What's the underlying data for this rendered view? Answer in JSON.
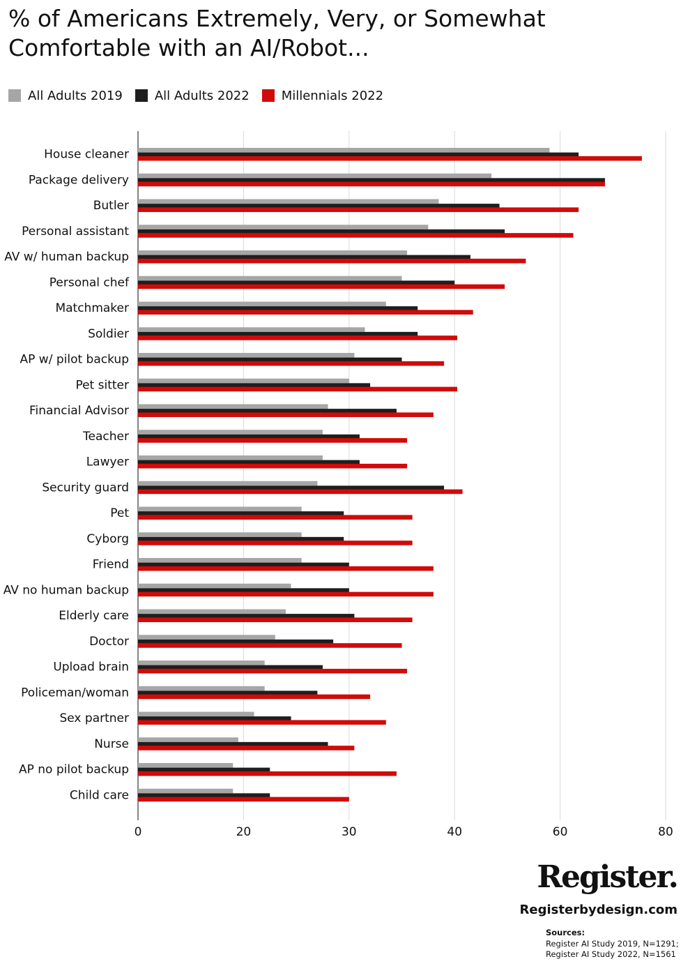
{
  "title": "% of Americans Extremely, Very, or Somewhat Comfortable with an AI/Robot...",
  "colors": {
    "all_adults_2019": "#a6a6a6",
    "all_adults_2022": "#1e1e1e",
    "millennials_2022": "#d10a0a",
    "grid": "#d9d9d9",
    "axis": "#333333"
  },
  "chart_data": {
    "type": "bar",
    "orientation": "horizontal",
    "title": "% of Americans Extremely, Very, or Somewhat Comfortable with an AI/Robot...",
    "xlabel": "",
    "ylabel": "",
    "grid": true,
    "legend_position": "top-left",
    "x_ticks": [
      "0",
      "20",
      "30",
      "40",
      "60",
      "80"
    ],
    "categories": [
      "House cleaner",
      "Package delivery",
      "Butler",
      "Personal assistant",
      "AV w/ human backup",
      "Personal chef",
      "Matchmaker",
      "Soldier",
      "AP w/ pilot backup",
      "Pet sitter",
      "Financial Advisor",
      "Teacher",
      "Lawyer",
      "Security guard",
      "Pet",
      "Cyborg",
      "Friend",
      "AV no human backup",
      "Elderly care",
      "Doctor",
      "Upload brain",
      "Policeman/woman",
      "Sex partner",
      "Nurse",
      "AP no pilot backup",
      "Child care"
    ],
    "series": [
      {
        "name": "All Adults 2019",
        "color_key": "all_adults_2019",
        "slot": 0.0,
        "values": [
          58,
          47,
          38.5,
          37.5,
          35.5,
          35,
          33.5,
          31.5,
          30.5,
          30,
          28,
          27.5,
          27.5,
          27,
          25.5,
          25.5,
          25.5,
          24.5,
          24,
          23,
          22,
          22,
          21,
          19,
          18,
          18
        ]
      },
      {
        "name": "All Adults 2022",
        "color_key": "all_adults_2022",
        "slot": 1.0,
        "values": [
          63.5,
          68.5,
          48.5,
          49.5,
          43,
          40,
          36.5,
          36.5,
          35,
          32,
          34.5,
          31,
          31,
          39,
          29.5,
          29.5,
          30,
          30,
          30.5,
          28.5,
          27.5,
          27,
          24.5,
          28,
          22.5,
          22.5
        ]
      },
      {
        "name": "Millennials 2022",
        "color_key": "millennials_2022",
        "slot": 1.8,
        "values": [
          75.5,
          68.5,
          63.5,
          62.5,
          53.5,
          49.5,
          43.5,
          40.5,
          39,
          40.5,
          38,
          35.5,
          35.5,
          41.5,
          36,
          36,
          38,
          38,
          36,
          35,
          35.5,
          32,
          33.5,
          30.5,
          34.5,
          30
        ]
      }
    ]
  },
  "brand": {
    "logo": "Register.",
    "url": "Registerbydesign.com"
  },
  "sources": {
    "heading": "Sources:",
    "line1": "Register AI Study 2019, N=1291;",
    "line2": "Register AI Study 2022, N=1561"
  }
}
